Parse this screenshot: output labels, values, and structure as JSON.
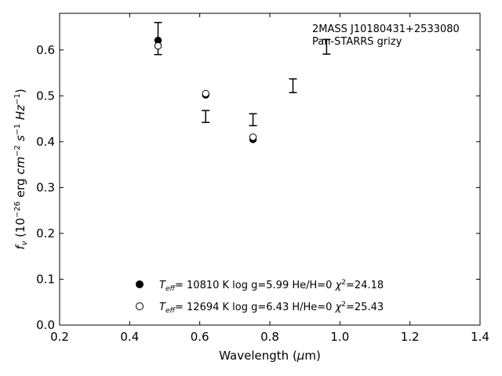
{
  "chart_data": {
    "type": "scatter",
    "xlim": [
      0.2,
      1.4
    ],
    "ylim": [
      0.0,
      0.68
    ],
    "xticks": [
      "0.2",
      "0.4",
      "0.6",
      "0.8",
      "1.0",
      "1.2",
      "1.4"
    ],
    "yticks": [
      "0.0",
      "0.1",
      "0.2",
      "0.3",
      "0.4",
      "0.5",
      "0.6"
    ],
    "xlabel": {
      "pre": "Wavelength (",
      "mu": "μ",
      "post": "m)"
    },
    "ylabel": {
      "f": "f",
      "nu": "ν",
      "a": " (10",
      "exp1": "−26",
      "b": " erg ",
      "cm": "cm",
      "exp2": "−2",
      "s": "s",
      "exp3": "−1",
      "hz": "Hz",
      "exp4": "−1",
      "c": ")"
    },
    "annotation": [
      "2MASS J10180431+2533080",
      "Pan-STARRS grizy"
    ],
    "observed": {
      "x": [
        0.481,
        0.617,
        0.752,
        0.866,
        0.962
      ],
      "y": [
        0.625,
        0.455,
        0.448,
        0.522,
        0.607
      ],
      "err": [
        0.035,
        0.013,
        0.013,
        0.015,
        0.016
      ]
    },
    "series": [
      {
        "marker": "filled-circle",
        "color": "#000000",
        "x": [
          0.481,
          0.617,
          0.752
        ],
        "y": [
          0.621,
          0.502,
          0.405
        ],
        "legend": {
          "T": "T",
          "eff": "eff",
          "main": "= 10810 K  log g=5.99  He/H=0  ",
          "chi": "χ",
          "chisup": "2",
          "val": "=24.18"
        }
      },
      {
        "marker": "open-circle",
        "color": "#000000",
        "x": [
          0.481,
          0.617,
          0.752
        ],
        "y": [
          0.609,
          0.505,
          0.41
        ],
        "legend": {
          "T": "T",
          "eff": "eff",
          "main": "= 12694 K  log g=6.43  H/He=0  ",
          "chi": "χ",
          "chisup": "2",
          "val": "=25.43"
        }
      }
    ]
  }
}
